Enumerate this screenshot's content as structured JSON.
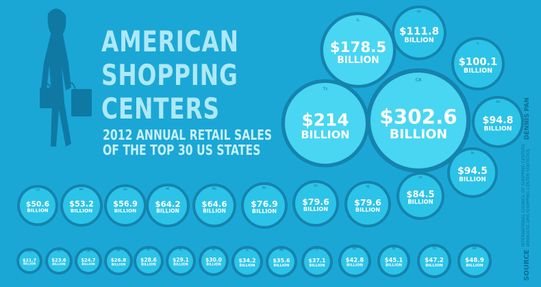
{
  "title_lines": [
    "AMERICAN",
    "SHOPPING",
    "CENTERS"
  ],
  "subtitle_lines": [
    "2012 ANNUAL RETAIL SALES",
    "OF THE TOP 30 US STATES"
  ],
  "source": {
    "label": "SOURCE",
    "line1": "INTERNATIONAL COUNCIL OF SHOPPING CENTERS",
    "line2": "WWW.ICSC.ORG SHOPPING CENTER STATISTICS",
    "author": "DENNIS PAN"
  },
  "unit_label": "BILLION",
  "colors": {
    "background": "#1aa7d6",
    "ring": "#1683ad",
    "bubble": "#2cc3e8",
    "big_bubble": "#48d6f2",
    "text": "#ffffff",
    "silhouette": "#0f79a4"
  },
  "chart_data": {
    "type": "bubble",
    "title": "AMERICAN SHOPPING CENTERS",
    "subtitle": "2012 ANNUAL RETAIL SALES OF THE TOP 30 US STATES",
    "unit": "BILLION",
    "states": [
      {
        "state": "CA",
        "value": 302.6,
        "label": "$302.6"
      },
      {
        "state": "TX",
        "value": 214.0,
        "label": "$214"
      },
      {
        "state": "FL",
        "value": 178.5,
        "label": "$178.5"
      },
      {
        "state": "NY",
        "value": 111.8,
        "label": "$111.8"
      },
      {
        "state": "IL",
        "value": 100.1,
        "label": "$100.1"
      },
      {
        "state": "OH",
        "value": 94.8,
        "label": "$94.8"
      },
      {
        "state": "PA",
        "value": 94.5,
        "label": "$94.5"
      },
      {
        "state": "VA",
        "value": 84.5,
        "label": "$84.5"
      },
      {
        "state": "NJ",
        "value": 79.6,
        "label": "$79.6"
      },
      {
        "state": "GA",
        "value": 79.6,
        "label": "$79.6"
      },
      {
        "state": "NC",
        "value": 76.9,
        "label": "$76.9"
      },
      {
        "state": "MD",
        "value": 64.6,
        "label": "$64.6"
      },
      {
        "state": "MI",
        "value": 64.2,
        "label": "$64.2"
      },
      {
        "state": "AR",
        "value": 56.9,
        "label": "$56.9"
      },
      {
        "state": "MA",
        "value": 53.2,
        "label": "$53.2"
      },
      {
        "state": "CO",
        "value": 50.6,
        "label": "$50.6"
      },
      {
        "state": "CR",
        "value": 21.7,
        "label": "$21.7"
      },
      {
        "state": "KY",
        "value": 23.6,
        "label": "$23.6"
      },
      {
        "state": "OK",
        "value": 24.7,
        "label": "$24.7"
      },
      {
        "state": "KA",
        "value": 26.8,
        "label": "$26.8"
      },
      {
        "state": "NV",
        "value": 28.6,
        "label": "$28.6"
      },
      {
        "state": "AL",
        "value": 29.1,
        "label": "$29.1"
      },
      {
        "state": "WI",
        "value": 30.0,
        "label": "$30.0"
      },
      {
        "state": "SC",
        "value": 34.2,
        "label": "$34.2"
      },
      {
        "state": "MN",
        "value": 35.6,
        "label": "$35.6"
      },
      {
        "state": "CT",
        "value": 37.1,
        "label": "$37.1"
      },
      {
        "state": "MO",
        "value": 42.8,
        "label": "$42.8"
      },
      {
        "state": "IN",
        "value": 45.1,
        "label": "$45.1"
      },
      {
        "state": "TN",
        "value": 47.2,
        "label": "$47.2"
      },
      {
        "state": "WA",
        "value": 48.9,
        "label": "$48.9"
      }
    ]
  }
}
